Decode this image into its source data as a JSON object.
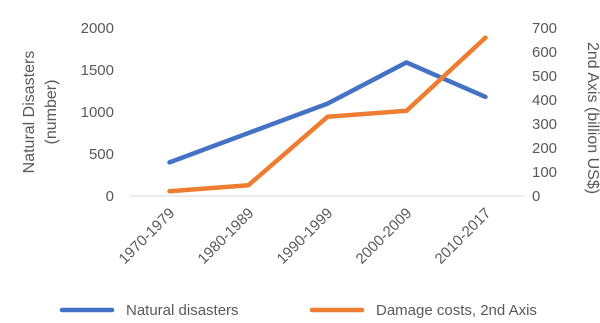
{
  "chart_data": {
    "type": "line",
    "categories": [
      "1970-1979",
      "1980-1989",
      "1990-1999",
      "2000-2009",
      "2010-2017"
    ],
    "series": [
      {
        "name": "Natural disasters",
        "axis": "left",
        "color": "#4472C4",
        "values": [
          400,
          750,
          1100,
          1590,
          1180
        ]
      },
      {
        "name": "Damage costs, 2nd Axis",
        "axis": "right",
        "color": "#ED7D31",
        "values": [
          20,
          45,
          330,
          355,
          660
        ]
      }
    ],
    "ylabel": "Natural Disasters (number)",
    "ylabel_lines": [
      "Natural Disasters",
      "(number)"
    ],
    "y2label": "2nd Axis (billion US$)",
    "ylim": [
      0,
      2000
    ],
    "y_ticks": [
      0,
      500,
      1000,
      1500,
      2000
    ],
    "y2lim": [
      0,
      700
    ],
    "y2_ticks": [
      0,
      100,
      200,
      300,
      400,
      500,
      600,
      700
    ],
    "grid": false,
    "legend_position": "bottom"
  }
}
